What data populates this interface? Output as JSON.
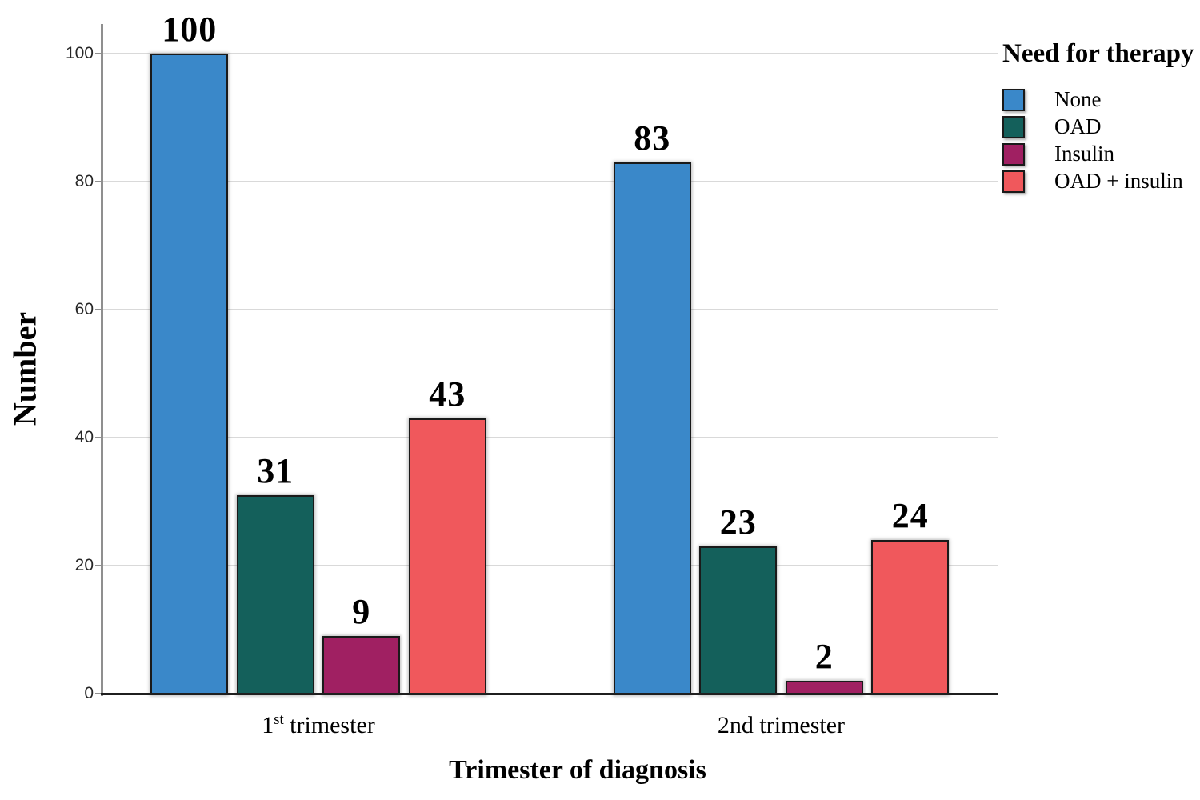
{
  "chart_data": {
    "type": "bar",
    "title": "",
    "xlabel": "Trimester of diagnosis",
    "ylabel": "Number",
    "categories": [
      "1st trimester",
      "2nd trimester"
    ],
    "categories_rich": [
      {
        "base": "1",
        "sup": "st",
        "rest": " trimester"
      },
      {
        "base": "2nd trimester",
        "sup": "",
        "rest": ""
      }
    ],
    "series": [
      {
        "name": "None",
        "color": "#3A88C9",
        "values": [
          100,
          83
        ]
      },
      {
        "name": "OAD",
        "color": "#14605B",
        "values": [
          31,
          23
        ]
      },
      {
        "name": "Insulin",
        "color": "#A02062",
        "values": [
          9,
          2
        ]
      },
      {
        "name": "OAD + insulin",
        "color": "#F0585C",
        "values": [
          43,
          24
        ]
      }
    ],
    "ylim": [
      0,
      100
    ],
    "yticks": [
      0,
      20,
      40,
      60,
      80,
      100
    ],
    "grid": true,
    "bar_value_labels": true,
    "legend": {
      "title": "Need for therapy",
      "position": "right",
      "entries": [
        "None",
        "OAD",
        "Insulin",
        "OAD + insulin"
      ]
    },
    "colors": {
      "background": "#ffffff",
      "grid": "#d9d9d9",
      "y_axis": "#8f8f8f",
      "x_axis": "#1f1f1f",
      "bar_border": "#1a1a1a",
      "text": "#000000",
      "tick_text": "#262626"
    }
  }
}
